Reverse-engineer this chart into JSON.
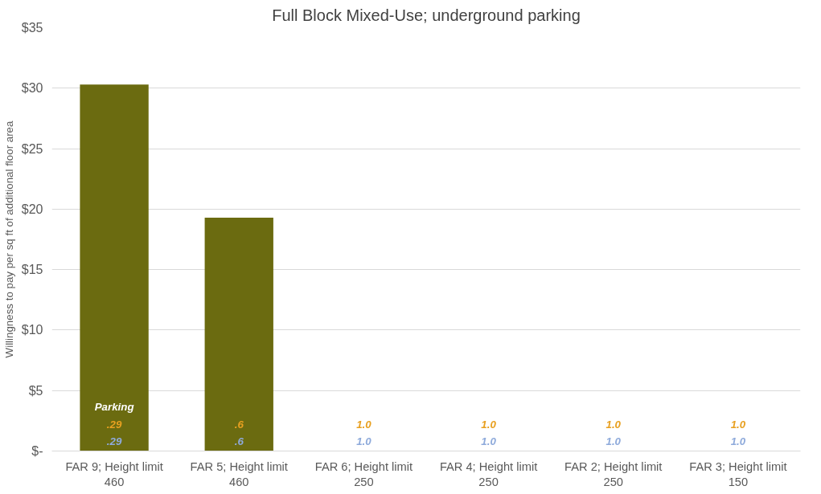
{
  "chart_data": {
    "type": "bar",
    "title": "Full Block Mixed-Use; underground parking",
    "ylabel": "Willingness to pay per sq ft of additional floor area",
    "categories": [
      "FAR 9; Height limit 460",
      "FAR 5; Height limit 460",
      "FAR 6; Height limit 250",
      "FAR 4; Height limit 250",
      "FAR 2; Height limit 250",
      "FAR 3; Height limit 150"
    ],
    "values": [
      30.3,
      19.3,
      0,
      0,
      0,
      0
    ],
    "color": "#6b6b10",
    "ylim": [
      0,
      35
    ],
    "yticks": [
      {
        "value": 0,
        "label": "$-"
      },
      {
        "value": 5,
        "label": "$5"
      },
      {
        "value": 10,
        "label": "$10"
      },
      {
        "value": 15,
        "label": "$15"
      },
      {
        "value": 20,
        "label": "$20"
      },
      {
        "value": 25,
        "label": "$25"
      },
      {
        "value": 30,
        "label": "$30"
      },
      {
        "value": 35,
        "label": "$35"
      }
    ],
    "grid": "y",
    "annotations": [
      "Parking",
      ".29",
      ".29",
      ".6",
      ".6",
      "1.0",
      "1.0",
      "1.0",
      "1.0",
      "1.0",
      "1.0",
      "1.0",
      "1.0"
    ]
  }
}
